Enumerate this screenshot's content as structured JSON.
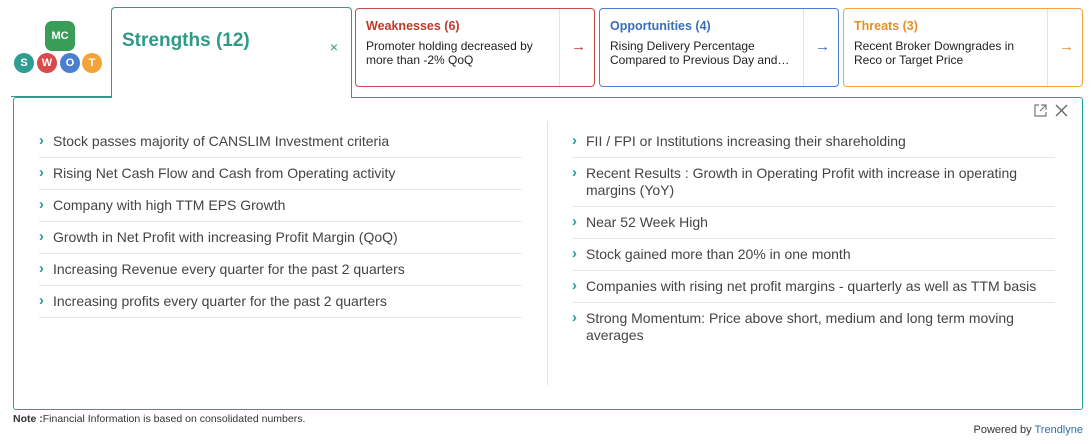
{
  "logo": {
    "mc": "MC",
    "letters": [
      "S",
      "W",
      "O",
      "T"
    ]
  },
  "strengths": {
    "title": "Strengths (12)",
    "close": "×",
    "left_items": [
      "Stock passes majority of CANSLIM Investment criteria",
      "Rising Net Cash Flow and Cash from Operating activity",
      "Company with high TTM EPS Growth",
      "Growth in Net Profit with increasing Profit Margin (QoQ)",
      "Increasing Revenue every quarter for the past 2 quarters",
      "Increasing profits every quarter for the past 2 quarters"
    ],
    "right_items": [
      "FII / FPI or Institutions increasing their shareholding",
      "Recent Results : Growth in Operating Profit with increase in operating margins (YoY)",
      "Near 52 Week High",
      "Stock gained more than 20% in one month",
      "Companies with rising net profit margins - quarterly as well as TTM basis",
      "Strong Momentum: Price above short, medium and long term moving averages"
    ]
  },
  "weaknesses": {
    "title": "Weaknesses (6)",
    "text": "Promoter holding decreased by more than -2% QoQ"
  },
  "opportunities": {
    "title": "Opportunities (4)",
    "text": "Rising Delivery Percentage Compared to Previous Day and…"
  },
  "threats": {
    "title": "Threats (3)",
    "text": "Recent Broker Downgrades in Reco or Target Price"
  },
  "arrow": "→",
  "chevron": "›",
  "note": {
    "label": "Note :",
    "text": "Financial Information is based on consolidated numbers."
  },
  "powered": {
    "label": "Powered by ",
    "brand": "Trendlyne"
  },
  "colors": {
    "strengths": "#24a092",
    "weaknesses": "#c64a4a",
    "opportunities": "#4a7fd0",
    "threats": "#f0a43a"
  }
}
